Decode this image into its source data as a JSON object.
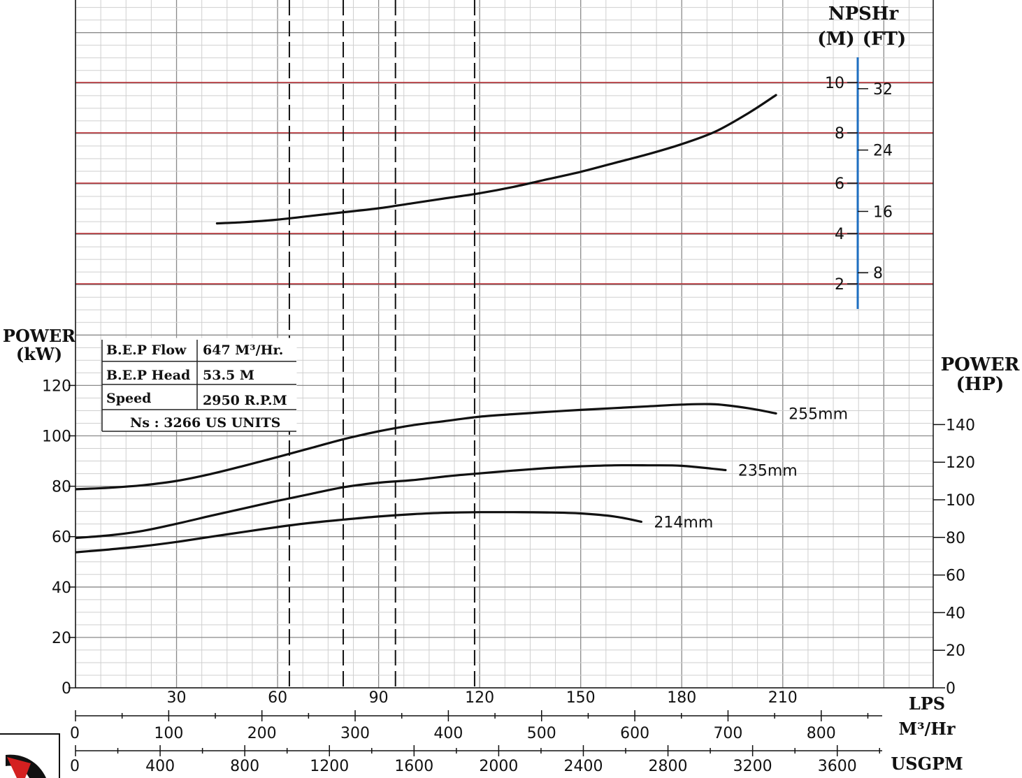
{
  "chart_data": {
    "type": "line",
    "grid": true,
    "power_axis_left": {
      "label_line1": "POWER",
      "label_line2": "(kW)",
      "ticks": [
        0,
        20,
        40,
        60,
        80,
        100,
        120
      ],
      "ylim": [
        0,
        140
      ]
    },
    "power_axis_right": {
      "label_line1": "POWER",
      "label_line2": "(HP)",
      "ticks": [
        0,
        20,
        40,
        60,
        80,
        100,
        120,
        140
      ]
    },
    "npshr_axis": {
      "title": "NPSHr",
      "m_label": "(M)",
      "ft_label": "(FT)",
      "m_ticks": [
        2,
        4,
        6,
        8,
        10
      ],
      "ft_ticks": [
        8,
        16,
        24,
        32
      ]
    },
    "x_axes": {
      "lps": {
        "label": "LPS",
        "ticks": [
          30,
          60,
          90,
          120,
          150,
          180,
          210
        ]
      },
      "m3hr": {
        "label": "M³/Hr",
        "ticks": [
          0,
          100,
          200,
          300,
          400,
          500,
          600,
          700,
          800
        ]
      },
      "usgpm": {
        "label": "USGPM",
        "ticks": [
          0,
          400,
          800,
          1200,
          1600,
          2000,
          2400,
          2800,
          3200,
          3600
        ]
      }
    },
    "vertical_dashed_lps": [
      63.5,
      79.5,
      95,
      118.5
    ],
    "series": [
      {
        "name": "255mm",
        "axis": "power_kw",
        "x": [
          0,
          10,
          20,
          30,
          40,
          50,
          60,
          70,
          80,
          90,
          100,
          110,
          120,
          130,
          140,
          150,
          160,
          170,
          180,
          190,
          200,
          208
        ],
        "y": [
          78.8,
          79.4,
          80.4,
          82.1,
          84.8,
          88.1,
          91.6,
          95.2,
          98.8,
          101.8,
          104.2,
          105.9,
          107.6,
          108.6,
          109.5,
          110.3,
          111.0,
          111.7,
          112.4,
          112.5,
          110.9,
          108.9
        ]
      },
      {
        "name": "235mm",
        "axis": "power_kw",
        "x": [
          0,
          10,
          20,
          30,
          40,
          50,
          60,
          70,
          80,
          90,
          100,
          110,
          120,
          130,
          140,
          150,
          160,
          170,
          180,
          193
        ],
        "y": [
          59.5,
          60.5,
          62.3,
          65.1,
          68.2,
          71.2,
          74.2,
          77.0,
          79.7,
          81.4,
          82.4,
          83.9,
          85.1,
          86.2,
          87.2,
          87.9,
          88.3,
          88.3,
          88.1,
          86.4
        ]
      },
      {
        "name": "214mm",
        "axis": "power_kw",
        "x": [
          0,
          10,
          20,
          30,
          40,
          50,
          60,
          70,
          80,
          90,
          100,
          110,
          120,
          130,
          140,
          150,
          160,
          168
        ],
        "y": [
          53.8,
          54.9,
          56.2,
          57.9,
          59.9,
          61.9,
          63.8,
          65.5,
          66.8,
          68.0,
          68.9,
          69.5,
          69.7,
          69.7,
          69.6,
          69.2,
          68.0,
          65.9
        ]
      },
      {
        "name": "NPSHr",
        "axis": "npshr_m",
        "x": [
          42,
          50,
          60,
          70,
          80,
          90,
          100,
          110,
          120,
          130,
          140,
          150,
          160,
          170,
          180,
          190,
          200,
          208
        ],
        "y": [
          4.4,
          4.45,
          4.55,
          4.7,
          4.85,
          5.0,
          5.2,
          5.4,
          5.6,
          5.85,
          6.15,
          6.45,
          6.8,
          7.15,
          7.55,
          8.05,
          8.8,
          9.5
        ]
      }
    ],
    "bep_table": {
      "rows": [
        {
          "label": "B.E.P Flow",
          "value": "647 M³/Hr."
        },
        {
          "label": "B.E.P Head",
          "value": "53.5  M"
        },
        {
          "label": "Speed",
          "value": "2950  R.P.M"
        }
      ],
      "ns": "Ns  :  3266  US  UNITS"
    }
  },
  "colors": {
    "npsh_lines": "#b8282e",
    "npsh_axis": "#1e6fc2",
    "grid_major": "#8a8a8a",
    "grid_minor": "#cfcfcf",
    "curves": "#111111",
    "logo_red": "#d42020"
  },
  "icons": {
    "corner_logo": "pump-logo-icon"
  }
}
